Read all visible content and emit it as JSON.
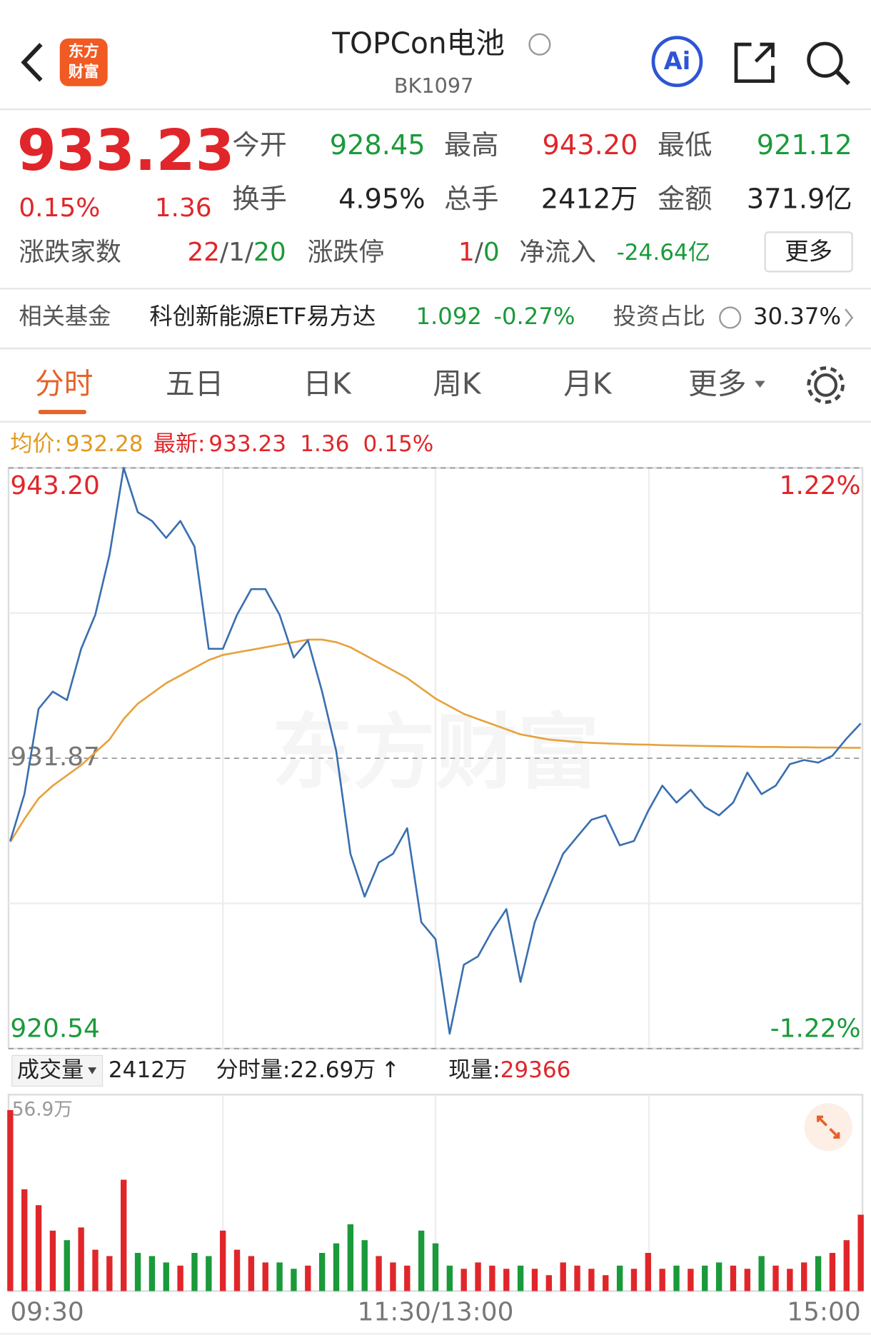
{
  "header": {
    "logo": [
      "东方",
      "财富"
    ],
    "title": "TOPCon电池",
    "code": "BK1097",
    "ai": "Ai"
  },
  "quote": {
    "price": "933.23",
    "pct": "0.15%",
    "change": "1.36",
    "stats": [
      [
        {
          "label": "今开",
          "value": "928.45"
        },
        {
          "label": "最高",
          "value": "943.20"
        },
        {
          "label": "最低",
          "value": "921.12"
        }
      ],
      [
        {
          "label": "换手",
          "value": "4.95%"
        },
        {
          "label": "总手",
          "value": "2412万"
        },
        {
          "label": "金额",
          "value": "371.9亿"
        }
      ]
    ],
    "breadth": {
      "label": "涨跌家数",
      "up": "22",
      "flat": "1",
      "down": "20",
      "separator": "/"
    },
    "limit": {
      "label": "涨跌停",
      "up": "1",
      "down": "0",
      "separator": "/"
    },
    "net_inflow": {
      "label": "净流入",
      "value": "-24.64亿"
    },
    "more": "更多"
  },
  "fund": {
    "label": "相关基金",
    "name": "科创新能源ETF易方达",
    "price": "1.092",
    "pct": "-0.27%",
    "ratio_label": "投资占比",
    "ratio": "30.37%"
  },
  "tabs": [
    "分时",
    "五日",
    "日K",
    "周K",
    "月K",
    "更多"
  ],
  "summary": {
    "avg_label": "均价:",
    "avg": "932.28",
    "latest_label": "最新:",
    "latest": "933.23",
    "change": "1.36",
    "pct": "0.15%"
  },
  "volume_info": {
    "label": "成交量",
    "total": "2412万",
    "minute_label": "分时量:",
    "minute": "22.69万",
    "arrow": "↑",
    "current_label": "现量:",
    "current": "29366"
  },
  "watermark": "东方财富",
  "chart_data": [
    {
      "type": "line",
      "categories": [
        "09:30",
        null,
        null,
        null,
        null,
        null,
        null,
        null,
        null,
        null,
        null,
        null,
        null,
        null,
        null,
        null,
        null,
        null,
        null,
        null,
        null,
        null,
        null,
        null,
        null,
        null,
        null,
        null,
        null,
        null,
        "11:30/13:00",
        null,
        null,
        null,
        null,
        null,
        null,
        null,
        null,
        null,
        null,
        null,
        null,
        null,
        null,
        null,
        null,
        null,
        null,
        null,
        null,
        null,
        null,
        null,
        null,
        null,
        null,
        null,
        null,
        null,
        "15:00"
      ],
      "series": [
        {
          "color": "#3a6fb0",
          "values": [
            928.64,
            930.47,
            933.8,
            934.47,
            934.14,
            936.14,
            937.47,
            939.8,
            943.2,
            941.47,
            941.13,
            940.47,
            941.13,
            940.13,
            936.14,
            936.14,
            937.47,
            938.47,
            938.47,
            937.47,
            935.8,
            936.47,
            934.47,
            932.14,
            928.14,
            926.47,
            927.8,
            928.14,
            929.14,
            925.47,
            924.81,
            921.12,
            923.81,
            924.14,
            925.14,
            925.98,
            923.14,
            925.47,
            926.81,
            928.14,
            928.81,
            929.47,
            929.64,
            928.47,
            928.64,
            929.81,
            930.8,
            930.14,
            930.64,
            929.97,
            929.64,
            930.14,
            931.31,
            930.47,
            930.8,
            931.64,
            931.8,
            931.7,
            931.97,
            932.64,
            933.23
          ]
        },
        {
          "color": "#e6a23c",
          "values": [
            928.6,
            929.5,
            930.3,
            930.8,
            931.2,
            931.6,
            932.1,
            932.6,
            933.4,
            934.0,
            934.4,
            934.8,
            935.1,
            935.4,
            935.7,
            935.9,
            936.0,
            936.1,
            936.2,
            936.3,
            936.4,
            936.5,
            936.5,
            936.4,
            936.2,
            935.9,
            935.6,
            935.3,
            935.0,
            934.6,
            934.2,
            933.9,
            933.6,
            933.4,
            933.2,
            933.0,
            932.8,
            932.7,
            932.6,
            932.55,
            932.5,
            932.47,
            932.45,
            932.43,
            932.41,
            932.4,
            932.38,
            932.37,
            932.36,
            932.35,
            932.34,
            932.33,
            932.32,
            932.31,
            932.31,
            932.3,
            932.3,
            932.29,
            932.29,
            932.28,
            932.28
          ]
        }
      ],
      "ylim": [
        920.54,
        943.2
      ],
      "yticks": [
        {
          "value": 943.2,
          "label": "943.20"
        },
        931.87,
        920.54
      ],
      "y2lim": [
        -1.22,
        1.22
      ],
      "y2ticks": [
        {
          "value": 1.22,
          "label": "1.22%"
        },
        {
          "value": -1.22,
          "label": "-1.22%"
        }
      ],
      "up_color": "#e0262a",
      "down_color": "#1a9a3a"
    },
    {
      "type": "bar",
      "values": [
        56.9,
        32,
        27,
        19,
        16,
        20,
        13,
        11,
        35,
        12,
        11,
        9,
        8,
        12,
        11,
        19,
        13,
        11,
        9,
        9,
        7,
        8,
        12,
        15,
        21,
        16,
        11,
        9,
        8,
        19,
        15,
        8,
        7,
        9,
        8,
        7,
        8,
        7,
        5,
        9,
        8,
        7,
        5,
        8,
        7,
        12,
        7,
        8,
        7,
        8,
        9,
        8,
        7,
        11,
        8,
        7,
        9,
        11,
        12,
        16,
        24
      ],
      "ylim": [
        0,
        56.9
      ],
      "yticks": [
        {
          "value": 56.9,
          "label": "56.9万"
        }
      ],
      "up_color": "#e0262a",
      "down_color": "#1a9a3a"
    }
  ]
}
